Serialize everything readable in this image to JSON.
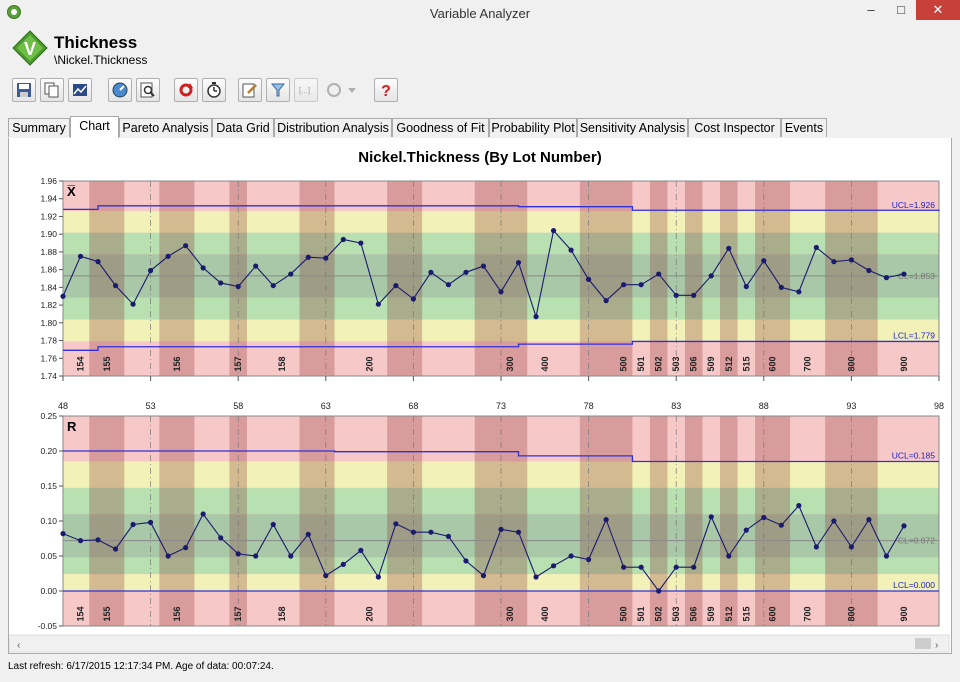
{
  "window": {
    "title": "Variable Analyzer",
    "minimize": "–",
    "maximize": "□",
    "close": "✕"
  },
  "header": {
    "title": "Thickness",
    "subtitle": "\\Nickel.Thickness"
  },
  "toolbar": {
    "icons": [
      "save-icon",
      "copy-icon",
      "export-chart-icon",
      "zoom-icon",
      "preview-icon",
      "refresh-icon",
      "timer-icon",
      "edit-icon",
      "filter-icon",
      "range-icon",
      "undo-icon",
      "dropdown-icon",
      "help-icon"
    ]
  },
  "tabs": [
    "Summary",
    "Chart",
    "Pareto Analysis",
    "Data Grid",
    "Distribution Analysis",
    "Goodness of Fit",
    "Probability Plot",
    "Sensitivity Analysis",
    "Cost Inspector",
    "Events"
  ],
  "active_tab": "Chart",
  "status": {
    "text": "Last refresh: 6/17/2015 12:17:34 PM.  Age of data: 00:07:24."
  },
  "colors": {
    "accent": "#1a1a6e",
    "limit": "#4040e0",
    "center": "#888888"
  },
  "chart_data": [
    {
      "type": "line",
      "title": "Nickel.Thickness (By Lot Number)",
      "panel_label": "X̅",
      "xlim": [
        48,
        98
      ],
      "x_ticks": [
        48,
        53,
        58,
        63,
        68,
        73,
        78,
        83,
        88,
        93,
        98
      ],
      "ylim": [
        1.74,
        1.96
      ],
      "y_ticks": [
        "1.96",
        "1.94",
        "1.92",
        "1.90",
        "1.88",
        "1.86",
        "1.84",
        "1.82",
        "1.80",
        "1.78",
        "1.76",
        "1.74"
      ],
      "lot_boundaries": [
        48.5,
        49.5,
        51.5,
        53.5,
        55.5,
        57.5,
        58.5,
        61.5,
        63.5,
        66.5,
        68.5,
        71.5,
        74.5,
        77.5,
        80.5,
        81.5,
        82.5,
        83.5,
        84.5,
        85.5,
        86.5,
        87.5,
        89.5,
        91.5,
        94.5,
        98.5
      ],
      "lot_labels": [
        {
          "x": 49,
          "label": "154"
        },
        {
          "x": 50.5,
          "label": "155"
        },
        {
          "x": 54.5,
          "label": "156"
        },
        {
          "x": 58,
          "label": "157"
        },
        {
          "x": 60.5,
          "label": "158"
        },
        {
          "x": 65.5,
          "label": "200"
        },
        {
          "x": 73.5,
          "label": "300"
        },
        {
          "x": 75.5,
          "label": "400"
        },
        {
          "x": 80,
          "label": "500"
        },
        {
          "x": 81,
          "label": "501"
        },
        {
          "x": 82,
          "label": "502"
        },
        {
          "x": 83,
          "label": "503"
        },
        {
          "x": 84,
          "label": "506"
        },
        {
          "x": 85,
          "label": "509"
        },
        {
          "x": 86,
          "label": "512"
        },
        {
          "x": 87,
          "label": "515"
        },
        {
          "x": 88.5,
          "label": "600"
        },
        {
          "x": 90.5,
          "label": "700"
        },
        {
          "x": 93,
          "label": "800"
        },
        {
          "x": 96,
          "label": "900"
        }
      ],
      "x": [
        48,
        49,
        50,
        51,
        52,
        53,
        54,
        55,
        56,
        57,
        58,
        59,
        60,
        61,
        62,
        63,
        64,
        65,
        66,
        67,
        68,
        69,
        70,
        71,
        72,
        73,
        74,
        75,
        76,
        77,
        78,
        79,
        80,
        81,
        82,
        83,
        84,
        85,
        86,
        87,
        88,
        89,
        90,
        91,
        92,
        93,
        94,
        95,
        96
      ],
      "values": [
        1.83,
        1.875,
        1.869,
        1.842,
        1.821,
        1.859,
        1.875,
        1.887,
        1.862,
        1.845,
        1.841,
        1.864,
        1.842,
        1.855,
        1.874,
        1.873,
        1.894,
        1.89,
        1.821,
        1.842,
        1.827,
        1.857,
        1.843,
        1.857,
        1.864,
        1.835,
        1.868,
        1.807,
        1.904,
        1.882,
        1.849,
        1.825,
        1.843,
        1.843,
        1.855,
        1.831,
        1.831,
        1.853,
        1.884,
        1.841,
        1.87,
        1.84,
        1.835,
        1.885,
        1.869,
        1.871,
        1.859,
        1.851,
        1.855
      ],
      "ucl": {
        "label": "UCL=1.926",
        "steps": [
          [
            48,
            1.928
          ],
          [
            49,
            1.928
          ],
          [
            50,
            1.932
          ],
          [
            63.5,
            1.932
          ],
          [
            74,
            1.931
          ],
          [
            80.5,
            1.927
          ],
          [
            98,
            1.926
          ]
        ]
      },
      "lcl": {
        "label": "LCL=1.779",
        "steps": [
          [
            48,
            1.769
          ],
          [
            49,
            1.769
          ],
          [
            50,
            1.773
          ],
          [
            63.5,
            1.773
          ],
          [
            74,
            1.776
          ],
          [
            80.5,
            1.779
          ],
          [
            98,
            1.779
          ]
        ]
      },
      "cl": {
        "label": "CL=1.853",
        "value": 1.853
      }
    },
    {
      "type": "line",
      "panel_label": "R",
      "xlim": [
        48,
        98
      ],
      "ylim": [
        -0.05,
        0.25
      ],
      "y_ticks": [
        "0.25",
        "0.20",
        "0.15",
        "0.10",
        "0.05",
        "0.00",
        "-0.05"
      ],
      "x": [
        48,
        49,
        50,
        51,
        52,
        53,
        54,
        55,
        56,
        57,
        58,
        59,
        60,
        61,
        62,
        63,
        64,
        65,
        66,
        67,
        68,
        69,
        70,
        71,
        72,
        73,
        74,
        75,
        76,
        77,
        78,
        79,
        80,
        81,
        82,
        83,
        84,
        85,
        86,
        87,
        88,
        89,
        90,
        91,
        92,
        93,
        94,
        95,
        96
      ],
      "values": [
        0.082,
        0.072,
        0.073,
        0.06,
        0.095,
        0.098,
        0.05,
        0.062,
        0.11,
        0.076,
        0.053,
        0.05,
        0.095,
        0.05,
        0.081,
        0.022,
        0.038,
        0.058,
        0.02,
        0.096,
        0.084,
        0.084,
        0.078,
        0.043,
        0.022,
        0.088,
        0.084,
        0.02,
        0.036,
        0.05,
        0.045,
        0.102,
        0.034,
        0.034,
        0.0,
        0.034,
        0.034,
        0.106,
        0.05,
        0.087,
        0.105,
        0.094,
        0.122,
        0.063,
        0.1,
        0.063,
        0.102,
        0.05,
        0.093
      ],
      "ucl": {
        "label": "UCL=0.185",
        "steps": [
          [
            48,
            0.2
          ],
          [
            63.5,
            0.199
          ],
          [
            74,
            0.193
          ],
          [
            80.5,
            0.185
          ],
          [
            98,
            0.185
          ]
        ]
      },
      "lcl": {
        "label": "LCL=0.000",
        "steps": [
          [
            48,
            0.0
          ],
          [
            98,
            0.0
          ]
        ]
      },
      "cl": {
        "label": "CL=0.072",
        "value": 0.072
      }
    }
  ]
}
